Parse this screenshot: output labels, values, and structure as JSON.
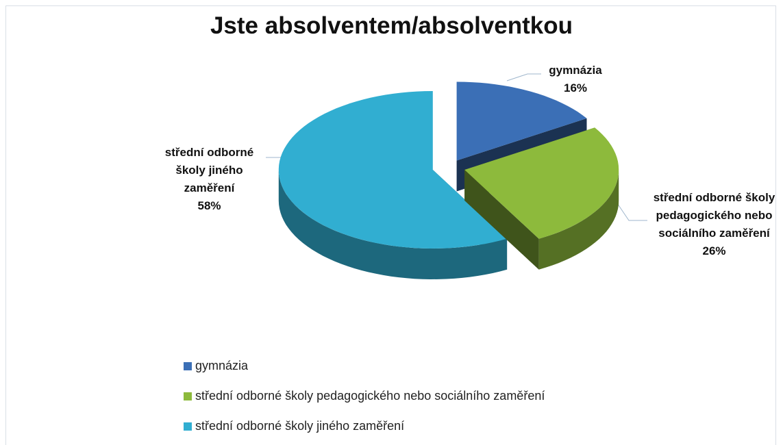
{
  "chart_data": {
    "type": "pie3d",
    "title": "Jste absolventem/absolventkou",
    "categories": [
      "gymnázia",
      "střední odborné školy pedagogického nebo sociálního zaměření",
      "střední odborné školy jiného zaměření"
    ],
    "values": [
      16,
      26,
      58
    ],
    "value_labels": [
      "16%",
      "26%",
      "58%"
    ],
    "colors": [
      "#3b6fb6",
      "#8dba3c",
      "#31aed1"
    ],
    "legend": "bottom-left"
  }
}
